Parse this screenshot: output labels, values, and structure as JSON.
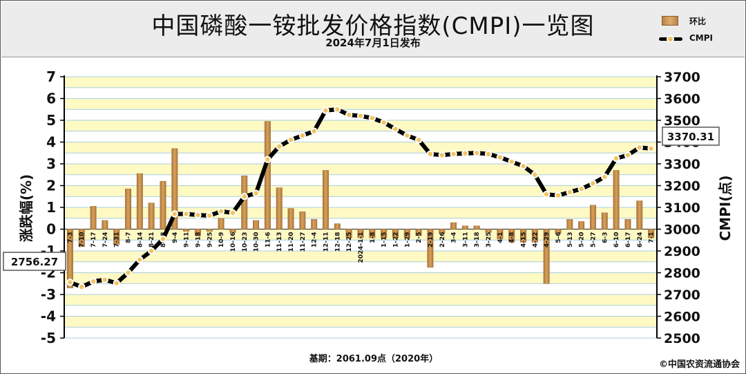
{
  "header": {
    "title": "中国磷酸一铵批发价格指数(CMPI)一览图",
    "subtitle": "2024年7月1日发布"
  },
  "legend": {
    "bar_label": "环比",
    "line_label": "CMPI"
  },
  "footer": {
    "baseline_note": "基期：2061.09点（2020年）",
    "copyright": "©中国农资流通协会"
  },
  "colors": {
    "bar": "#d9a25c",
    "bar_edge": "#a8743a",
    "line": "#000000",
    "marker": "#f2c460",
    "plot_bg_band": "#fff9c4",
    "gridline": "#a9cfe0"
  },
  "chart_data": {
    "type": "bar+line",
    "categories": [
      "7-3",
      "7-10",
      "7-17",
      "7-24",
      "7-31",
      "8-7",
      "8-14",
      "8-21",
      "8-28",
      "9-4",
      "9-11",
      "9-18",
      "9-25",
      "10-9",
      "10-16",
      "10-23",
      "10-30",
      "11-6",
      "11-13",
      "11-20",
      "11-27",
      "12-4",
      "12-11",
      "12-18",
      "12-25",
      "2024-1-1",
      "1-8",
      "1-15",
      "1-22",
      "1-29",
      "2-5",
      "2-19",
      "2-26",
      "3-4",
      "3-11",
      "3-18",
      "3-25",
      "4-1",
      "4-8",
      "4-15",
      "4-22",
      "4-29",
      "5-6",
      "5-13",
      "5-20",
      "5-27",
      "6-3",
      "6-10",
      "6-17",
      "6-24",
      "7-1"
    ],
    "series": [
      {
        "name": "环比",
        "type": "bar",
        "axis": "left",
        "values": [
          -2.7,
          -0.8,
          1.05,
          0.4,
          -0.7,
          1.85,
          2.55,
          1.2,
          2.2,
          3.7,
          -0.1,
          -0.3,
          -0.1,
          0.5,
          -0.15,
          2.45,
          0.4,
          4.95,
          1.9,
          0.95,
          0.8,
          0.45,
          2.7,
          0.25,
          -0.4,
          -0.4,
          -0.4,
          -0.4,
          -0.4,
          -0.4,
          -0.3,
          -1.75,
          -0.2,
          0.3,
          0.15,
          0.15,
          -0.15,
          -0.45,
          -0.6,
          -0.6,
          -0.6,
          -2.5,
          -0.2,
          0.45,
          0.35,
          1.1,
          0.75,
          2.7,
          0.45,
          1.3,
          -0.4
        ]
      },
      {
        "name": "CMPI",
        "type": "line",
        "axis": "right",
        "values": [
          2756.27,
          2735,
          2760,
          2768,
          2752,
          2800,
          2860,
          2900,
          2955,
          3070,
          3070,
          3065,
          3062,
          3082,
          3075,
          3150,
          3165,
          3320,
          3380,
          3410,
          3430,
          3450,
          3545,
          3550,
          3525,
          3520,
          3510,
          3490,
          3460,
          3430,
          3410,
          3345,
          3340,
          3345,
          3348,
          3350,
          3345,
          3330,
          3310,
          3290,
          3250,
          3160,
          3155,
          3170,
          3185,
          3210,
          3240,
          3325,
          3340,
          3375,
          3370.31
        ]
      }
    ],
    "ylabel_left": "涨跌幅(%)",
    "ylabel_right": "CMPI(点)",
    "ylim_left": [
      -5,
      7
    ],
    "ylim_right": [
      2500,
      3700
    ],
    "yticks_left": [
      "7",
      "6",
      "5",
      "4",
      "3",
      "2",
      "1",
      "0",
      "-1",
      "-2",
      "-3",
      "-4",
      "-5"
    ],
    "yticks_right": [
      "3700",
      "3600",
      "3500",
      "3400",
      "3300",
      "3200",
      "3100",
      "3000",
      "2900",
      "2800",
      "2700",
      "2600",
      "2500"
    ],
    "annotations": {
      "first_value_label": "2756.27",
      "last_value_label": "3370.31"
    },
    "grid": true
  }
}
